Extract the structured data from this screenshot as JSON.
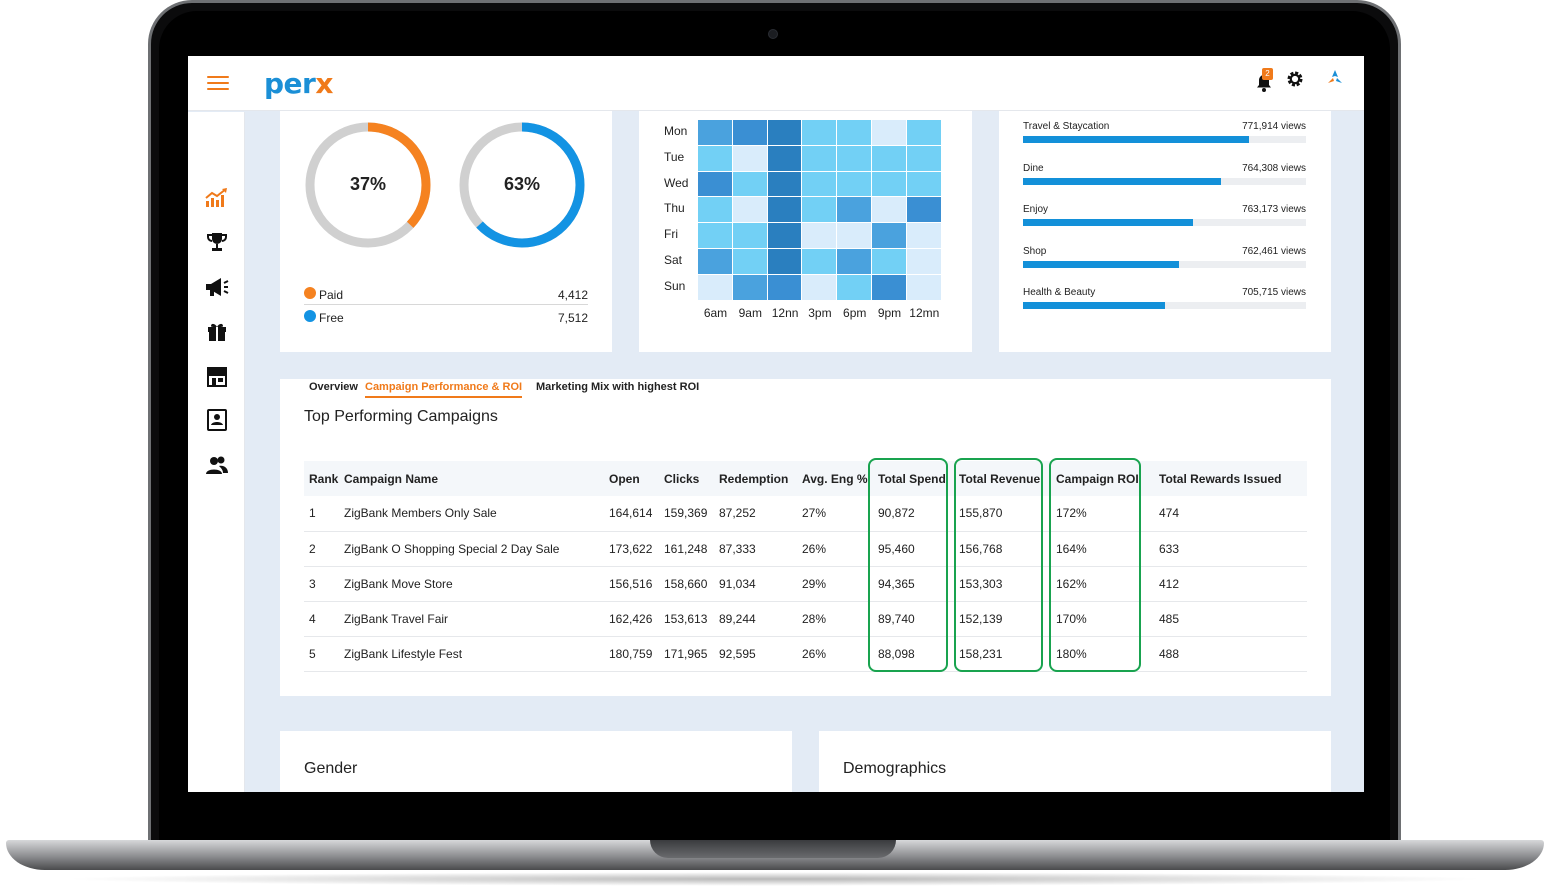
{
  "app": {
    "logo_text": "per",
    "logo_accent": "x",
    "notification_count": "2",
    "brand_color": "#1b8fd6",
    "accent_color": "#f07a1a"
  },
  "sidebar": {
    "items": [
      {
        "icon": "chart-growth-icon",
        "active": true
      },
      {
        "icon": "trophy-icon"
      },
      {
        "icon": "megaphone-icon"
      },
      {
        "icon": "gift-icon"
      },
      {
        "icon": "storefront-icon"
      },
      {
        "icon": "contact-card-icon"
      },
      {
        "icon": "users-icon"
      }
    ]
  },
  "donuts": [
    {
      "label": "37%",
      "value": 0.37,
      "color": "#f58220"
    },
    {
      "label": "63%",
      "value": 0.63,
      "color": "#1393e3"
    }
  ],
  "donut_legend": [
    {
      "label": "Paid",
      "value": "4,412",
      "color": "#f58220"
    },
    {
      "label": "Free",
      "value": "7,512",
      "color": "#1393e3"
    }
  ],
  "heatmap": {
    "days": [
      "Mon",
      "Tue",
      "Wed",
      "Thu",
      "Fri",
      "Sat",
      "Sun"
    ],
    "times": [
      "6am",
      "9am",
      "12nn",
      "3pm",
      "6pm",
      "9pm",
      "12mn"
    ],
    "levels": [
      [
        2,
        3,
        4,
        1,
        1,
        0,
        1
      ],
      [
        1,
        0,
        4,
        1,
        1,
        1,
        1
      ],
      [
        3,
        1,
        4,
        1,
        1,
        1,
        1
      ],
      [
        1,
        0,
        4,
        1,
        2,
        0,
        3
      ],
      [
        1,
        1,
        4,
        0,
        0,
        2,
        0
      ],
      [
        2,
        1,
        4,
        1,
        2,
        1,
        0
      ],
      [
        0,
        2,
        3,
        0,
        1,
        3,
        0
      ]
    ],
    "colors": [
      "#d9ecfb",
      "#72d0f5",
      "#4aa2de",
      "#3a8fd3",
      "#2a7fbf"
    ]
  },
  "category_views": [
    {
      "name": "Travel & Staycation",
      "views": "771,914 views",
      "fill": 0.8
    },
    {
      "name": "Dine",
      "views": "764,308 views",
      "fill": 0.7
    },
    {
      "name": "Enjoy",
      "views": "763,173 views",
      "fill": 0.6
    },
    {
      "name": "Shop",
      "views": "762,461 views",
      "fill": 0.55
    },
    {
      "name": "Health & Beauty",
      "views": "705,715 views",
      "fill": 0.5
    }
  ],
  "campaigns": {
    "title": "Top Performing Campaigns",
    "tabs": [
      "Overview",
      "Campaign Performance & ROI",
      "Marketing Mix with highest ROI"
    ],
    "active_tab": 1,
    "columns": [
      "Rank",
      "Campaign Name",
      "Open",
      "Clicks",
      "Redemption",
      "Avg. Eng %",
      "Total Spend",
      "Total Revenue",
      "Campaign ROI",
      "Total Rewards Issued"
    ],
    "rows": [
      [
        "1",
        "ZigBank Members Only Sale",
        "164,614",
        "159,369",
        "87,252",
        "27%",
        "90,872",
        "155,870",
        "172%",
        "474"
      ],
      [
        "2",
        "ZigBank O Shopping Special 2 Day Sale",
        "173,622",
        "161,248",
        "87,333",
        "26%",
        "95,460",
        "156,768",
        "164%",
        "633"
      ],
      [
        "3",
        "ZigBank Move Store",
        "156,516",
        "158,660",
        "91,034",
        "29%",
        "94,365",
        "153,303",
        "162%",
        "412"
      ],
      [
        "4",
        "ZigBank Travel Fair",
        "162,426",
        "153,613",
        "89,244",
        "28%",
        "89,740",
        "152,139",
        "170%",
        "485"
      ],
      [
        "5",
        "ZigBank Lifestyle Fest",
        "180,759",
        "171,965",
        "92,595",
        "26%",
        "88,098",
        "158,231",
        "180%",
        "488"
      ]
    ]
  },
  "bottom_cards": {
    "gender_title": "Gender",
    "demographics_title": "Demographics"
  }
}
